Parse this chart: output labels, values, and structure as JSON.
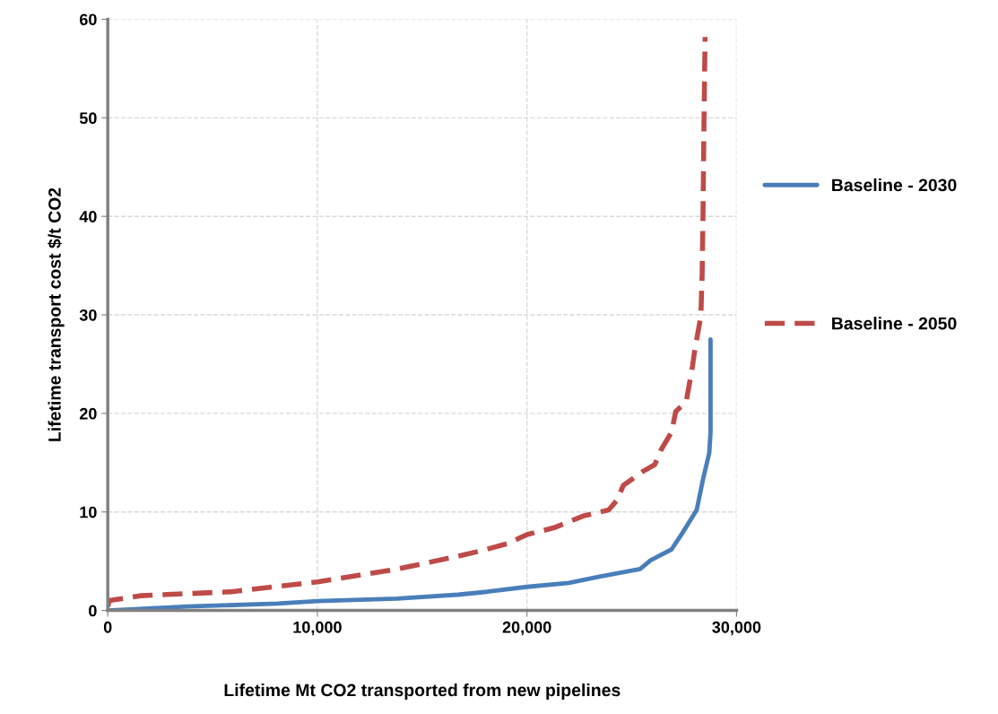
{
  "chart_data": {
    "type": "line",
    "xlabel": "Lifetime Mt CO2 transported from new pipelines",
    "ylabel": "Lifetime transport cost $/t CO2",
    "xlim": [
      0,
      30000
    ],
    "ylim": [
      0,
      60
    ],
    "xticks": [
      0,
      {
        "value": 10000,
        "label": "10,000"
      },
      {
        "value": 20000,
        "label": "20,000"
      },
      {
        "value": 30000,
        "label": "30,000"
      }
    ],
    "yticks": [
      0,
      10,
      20,
      30,
      40,
      50,
      60
    ],
    "grid": true,
    "legend": "right",
    "series": [
      {
        "name": "Baseline - 2030",
        "color": "#4a7ebb",
        "line_style": "solid",
        "x": [
          0,
          3800,
          8100,
          10000,
          13800,
          16700,
          18100,
          20000,
          22000,
          23400,
          25400,
          25900,
          26900,
          27400,
          28100,
          28400,
          28700,
          28760,
          28760
        ],
        "values": [
          0,
          0.4,
          0.7,
          0.95,
          1.2,
          1.6,
          1.9,
          2.4,
          2.8,
          3.4,
          4.2,
          5.1,
          6.2,
          7.8,
          10.2,
          13.3,
          16,
          18.1,
          27.5
        ]
      },
      {
        "name": "Baseline - 2050",
        "color": "#be4b48",
        "line_style": "dashed",
        "x": [
          0,
          70,
          1600,
          5900,
          10000,
          13800,
          16700,
          17700,
          19100,
          20000,
          21300,
          22700,
          23900,
          24300,
          24600,
          25600,
          26100,
          26400,
          26900,
          27100,
          27600,
          27900,
          28000,
          28300,
          28360,
          28400,
          28450,
          28500
        ],
        "values": [
          0.4,
          1.0,
          1.5,
          1.9,
          2.9,
          4.2,
          5.5,
          6.0,
          6.8,
          7.7,
          8.4,
          9.6,
          10.2,
          11.2,
          12.7,
          14.2,
          14.8,
          16.3,
          18.1,
          20.2,
          21.2,
          24.8,
          26.3,
          29.9,
          34.2,
          40,
          50,
          58.2
        ]
      }
    ]
  }
}
